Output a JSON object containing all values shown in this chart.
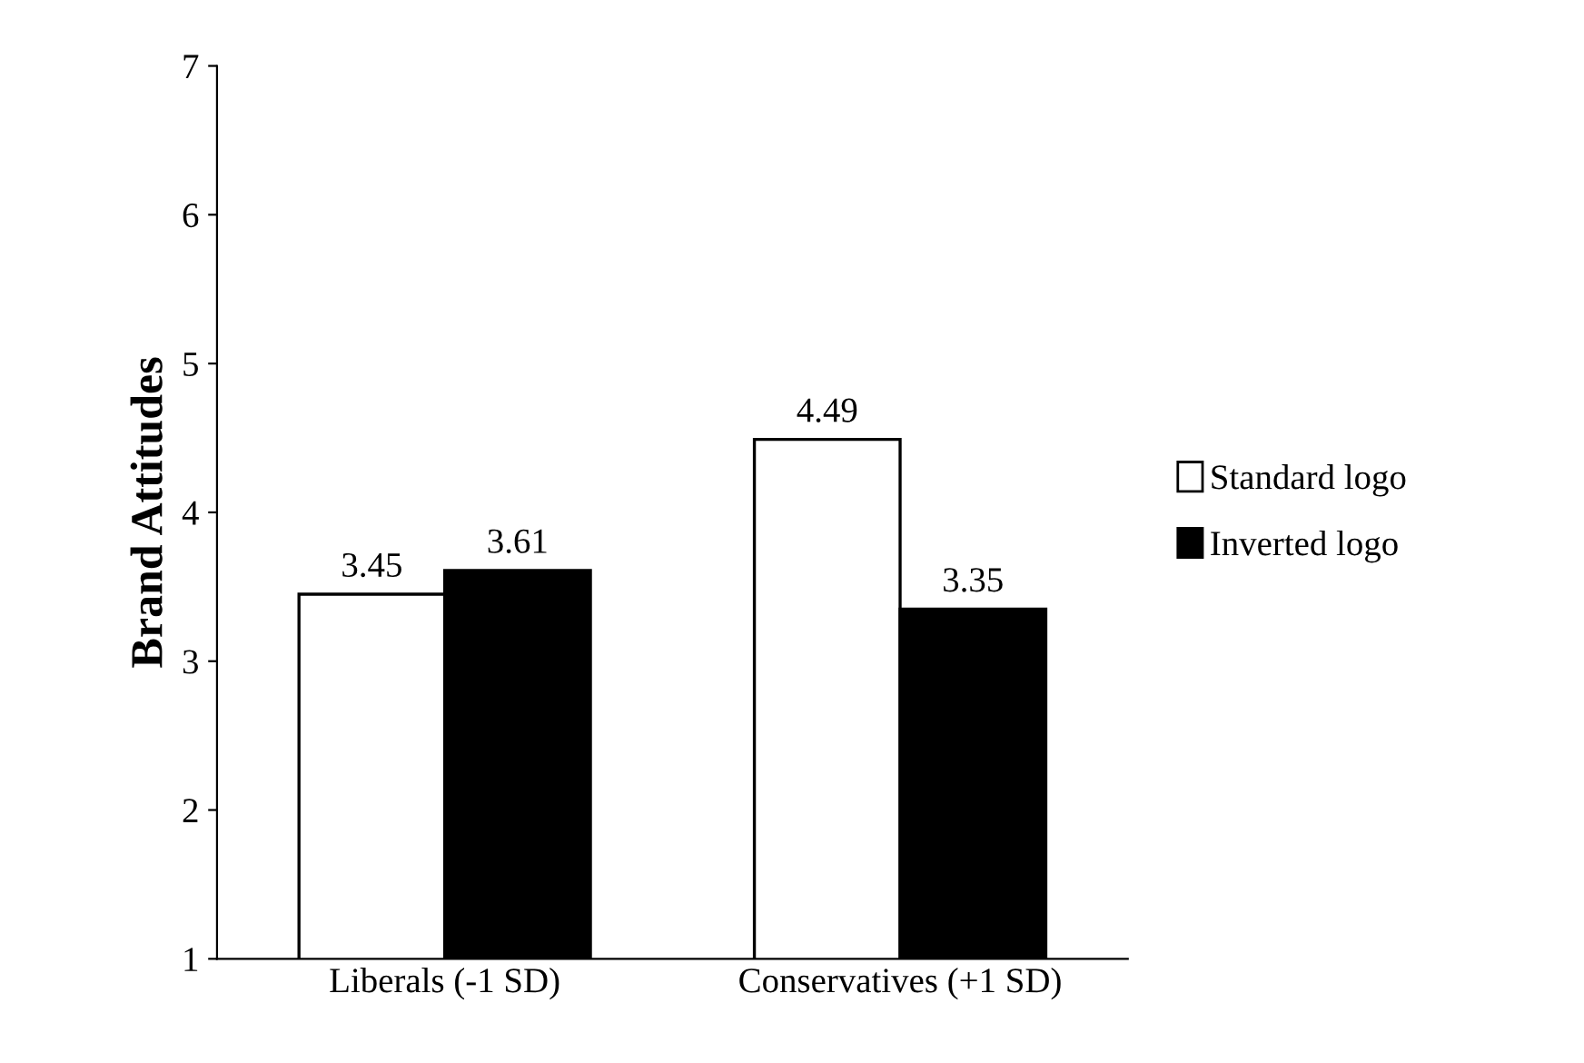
{
  "chart_data": {
    "type": "bar",
    "ylabel": "Brand Attitudes",
    "categories": [
      "Liberals (-1 SD)",
      "Conservatives (+1 SD)"
    ],
    "series": [
      {
        "name": "Standard logo",
        "color": "#ffffff",
        "values": [
          3.45,
          4.49
        ]
      },
      {
        "name": "Inverted logo",
        "color": "#000000",
        "values": [
          3.61,
          3.35
        ]
      }
    ],
    "ylim": [
      1,
      7
    ],
    "yticks": [
      1,
      2,
      3,
      4,
      5,
      6,
      7
    ],
    "grid": false,
    "legend": "right",
    "data_labels": true
  }
}
